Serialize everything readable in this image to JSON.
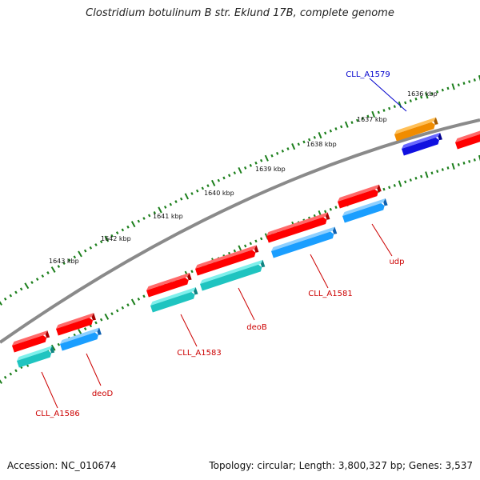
{
  "title": "Clostridium botulinum B str. Eklund 17B, complete genome",
  "footer": {
    "accession": "Accession: NC_010674",
    "topology": "Topology: circular; Length: 3,800,327 bp; Genes: 3,537"
  },
  "kbp_labels": [
    "1636 kbp",
    "1637 kbp",
    "1638 kbp",
    "1639 kbp",
    "1640 kbp",
    "1641 kbp",
    "1642 kbp",
    "1643 kbp"
  ],
  "gene_labels": [
    "CLL_A1579",
    "udp",
    "CLL_A1581",
    "deoB",
    "CLL_A1583",
    "deoD",
    "CLL_A1586"
  ],
  "colors": {
    "red": "#ff0000",
    "red_top": "#ff6a6a",
    "red_side": "#a80000",
    "cyan": "#1fc4c0",
    "cyan_top": "#7ff0ec",
    "cyan_side": "#0e8482",
    "blue": "#1a9eff",
    "blue_top": "#8fd0ff",
    "blue_side": "#0d60b0",
    "orange": "#f08c00",
    "orange_top": "#ffc058",
    "orange_side": "#a45c00",
    "navy": "#1010e0",
    "navy_top": "#6868ff",
    "navy_side": "#000090",
    "backbone": "#808080",
    "ticks": "#1c7f1c",
    "label_red": "#cc0000",
    "label_blue": "#0000cc"
  }
}
